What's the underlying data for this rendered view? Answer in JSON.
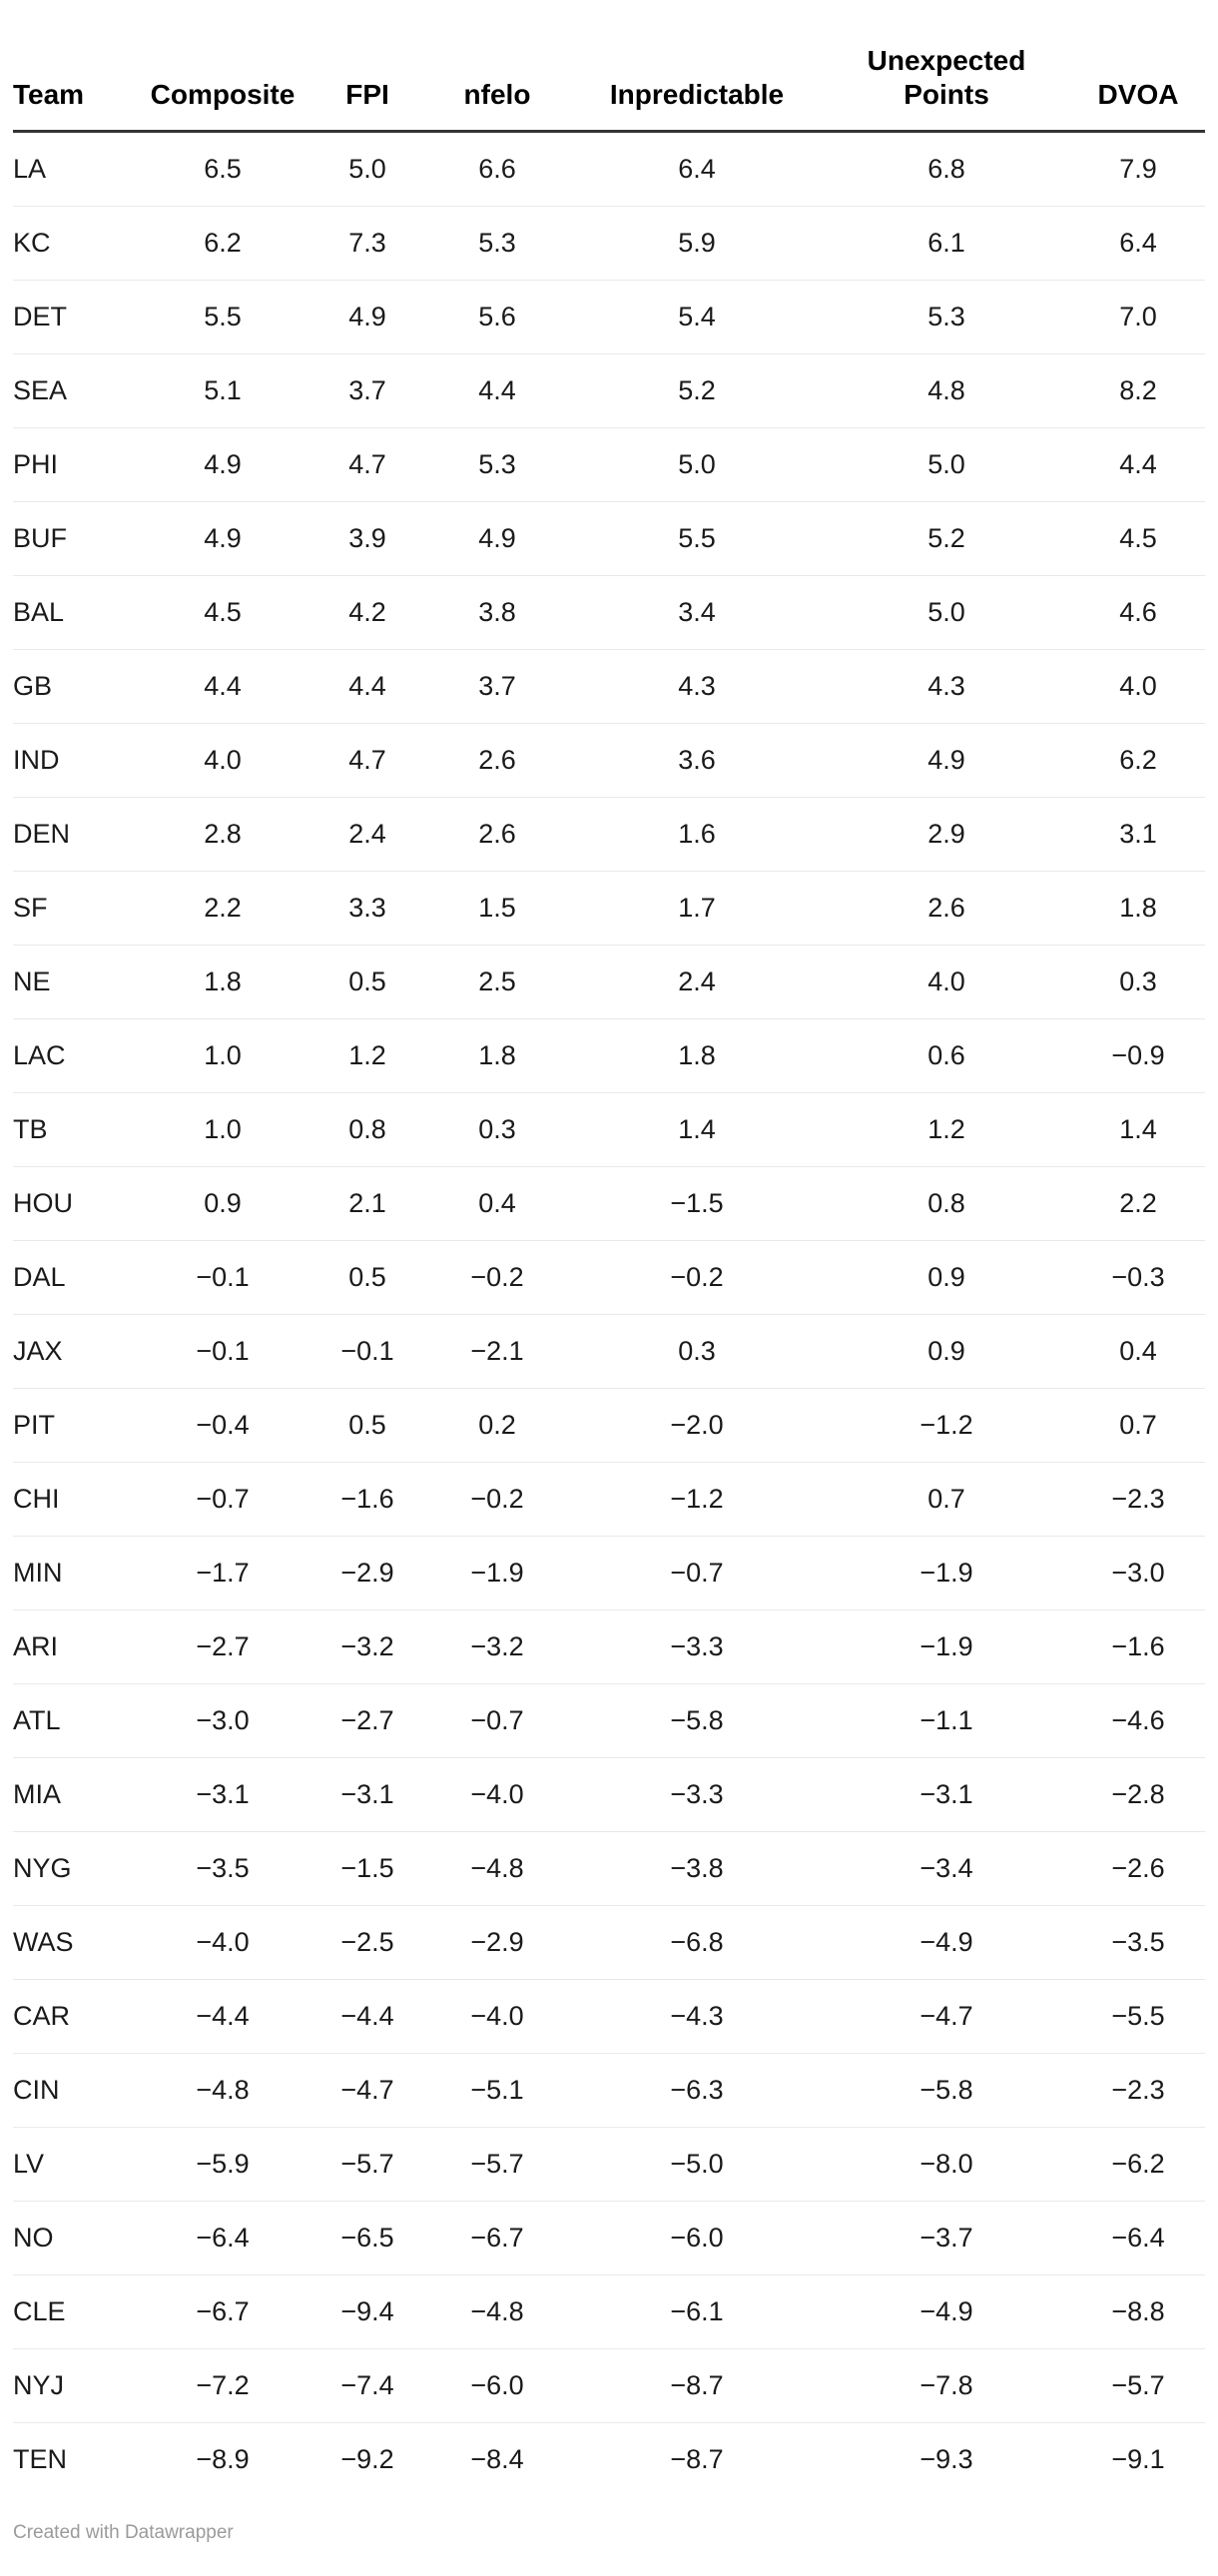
{
  "chart_data": {
    "type": "table",
    "columns": [
      "Team",
      "Composite",
      "FPI",
      "nfelo",
      "Inpredictable",
      "Unexpected Points",
      "DVOA"
    ],
    "rows": [
      [
        "LA",
        6.5,
        5.0,
        6.6,
        6.4,
        6.8,
        7.9
      ],
      [
        "KC",
        6.2,
        7.3,
        5.3,
        5.9,
        6.1,
        6.4
      ],
      [
        "DET",
        5.5,
        4.9,
        5.6,
        5.4,
        5.3,
        7.0
      ],
      [
        "SEA",
        5.1,
        3.7,
        4.4,
        5.2,
        4.8,
        8.2
      ],
      [
        "PHI",
        4.9,
        4.7,
        5.3,
        5.0,
        5.0,
        4.4
      ],
      [
        "BUF",
        4.9,
        3.9,
        4.9,
        5.5,
        5.2,
        4.5
      ],
      [
        "BAL",
        4.5,
        4.2,
        3.8,
        3.4,
        5.0,
        4.6
      ],
      [
        "GB",
        4.4,
        4.4,
        3.7,
        4.3,
        4.3,
        4.0
      ],
      [
        "IND",
        4.0,
        4.7,
        2.6,
        3.6,
        4.9,
        6.2
      ],
      [
        "DEN",
        2.8,
        2.4,
        2.6,
        1.6,
        2.9,
        3.1
      ],
      [
        "SF",
        2.2,
        3.3,
        1.5,
        1.7,
        2.6,
        1.8
      ],
      [
        "NE",
        1.8,
        0.5,
        2.5,
        2.4,
        4.0,
        0.3
      ],
      [
        "LAC",
        1.0,
        1.2,
        1.8,
        1.8,
        0.6,
        -0.9
      ],
      [
        "TB",
        1.0,
        0.8,
        0.3,
        1.4,
        1.2,
        1.4
      ],
      [
        "HOU",
        0.9,
        2.1,
        0.4,
        -1.5,
        0.8,
        2.2
      ],
      [
        "DAL",
        -0.1,
        0.5,
        -0.2,
        -0.2,
        0.9,
        -0.3
      ],
      [
        "JAX",
        -0.1,
        -0.1,
        -2.1,
        0.3,
        0.9,
        0.4
      ],
      [
        "PIT",
        -0.4,
        0.5,
        0.2,
        -2.0,
        -1.2,
        0.7
      ],
      [
        "CHI",
        -0.7,
        -1.6,
        -0.2,
        -1.2,
        0.7,
        -2.3
      ],
      [
        "MIN",
        -1.7,
        -2.9,
        -1.9,
        -0.7,
        -1.9,
        -3.0
      ],
      [
        "ARI",
        -2.7,
        -3.2,
        -3.2,
        -3.3,
        -1.9,
        -1.6
      ],
      [
        "ATL",
        -3.0,
        -2.7,
        -0.7,
        -5.8,
        -1.1,
        -4.6
      ],
      [
        "MIA",
        -3.1,
        -3.1,
        -4.0,
        -3.3,
        -3.1,
        -2.8
      ],
      [
        "NYG",
        -3.5,
        -1.5,
        -4.8,
        -3.8,
        -3.4,
        -2.6
      ],
      [
        "WAS",
        -4.0,
        -2.5,
        -2.9,
        -6.8,
        -4.9,
        -3.5
      ],
      [
        "CAR",
        -4.4,
        -4.4,
        -4.0,
        -4.3,
        -4.7,
        -5.5
      ],
      [
        "CIN",
        -4.8,
        -4.7,
        -5.1,
        -6.3,
        -5.8,
        -2.3
      ],
      [
        "LV",
        -5.9,
        -5.7,
        -5.7,
        -5.0,
        -8.0,
        -6.2
      ],
      [
        "NO",
        -6.4,
        -6.5,
        -6.7,
        -6.0,
        -3.7,
        -6.4
      ],
      [
        "CLE",
        -6.7,
        -9.4,
        -4.8,
        -6.1,
        -4.9,
        -8.8
      ],
      [
        "NYJ",
        -7.2,
        -7.4,
        -6.0,
        -8.7,
        -7.8,
        -5.7
      ],
      [
        "TEN",
        -8.9,
        -9.2,
        -8.4,
        -8.7,
        -9.3,
        -9.1
      ]
    ]
  },
  "footer": {
    "credit": "Created with Datawrapper"
  },
  "colors": {
    "header_text": "#000000",
    "body_text": "#1a1a1a",
    "header_border": "#333333",
    "row_divider": "#e9e9e9",
    "footer_text": "#9b9b9b"
  }
}
